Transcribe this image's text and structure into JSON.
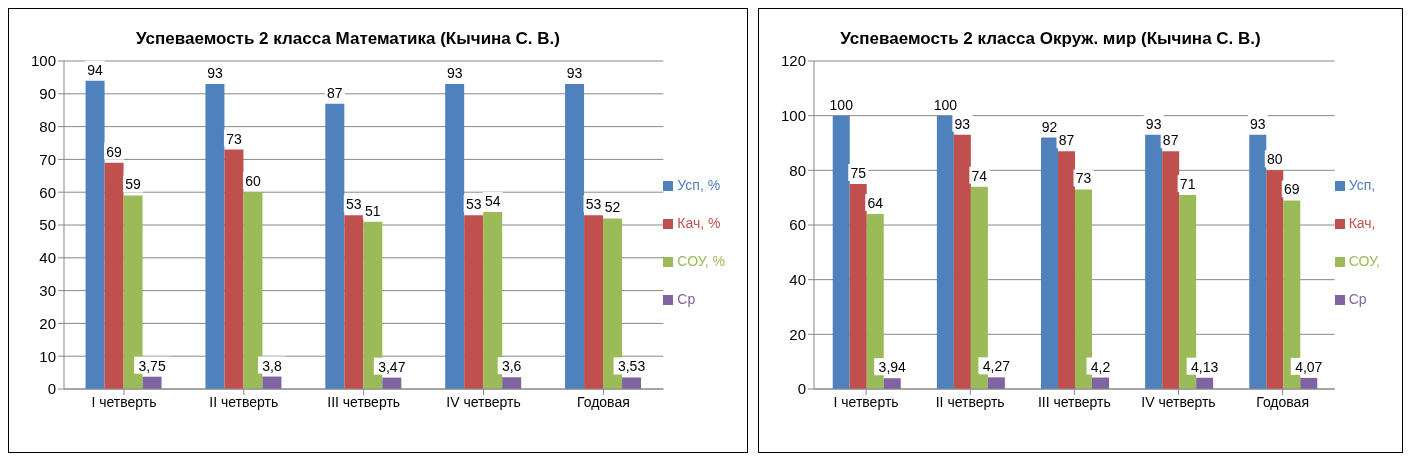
{
  "chart_data": [
    {
      "type": "bar",
      "title": "Успеваемость 2 класса Математика (Кычина С. В.)",
      "categories": [
        "I четверть",
        "II четверть",
        "III четверть",
        "IV четверть",
        "Годовая"
      ],
      "series": [
        {
          "name": "Усп, %",
          "color": "#4f81bd",
          "values": [
            94,
            93,
            87,
            93,
            93
          ],
          "value_labels": [
            "94",
            "93",
            "87",
            "93",
            "93"
          ]
        },
        {
          "name": "Кач, %",
          "color": "#c0504d",
          "values": [
            69,
            73,
            53,
            53,
            53
          ],
          "value_labels": [
            "69",
            "73",
            "53",
            "53",
            "53"
          ]
        },
        {
          "name": "СОУ, %",
          "color": "#9bbb59",
          "values": [
            59,
            60,
            51,
            54,
            52
          ],
          "value_labels": [
            "59",
            "60",
            "51",
            "54",
            "52"
          ]
        },
        {
          "name": "Ср",
          "color": "#8064a2",
          "values": [
            3.75,
            3.8,
            3.47,
            3.6,
            3.53
          ],
          "value_labels": [
            "3,75",
            "3,8",
            "3,47",
            "3,6",
            "3,53"
          ]
        }
      ],
      "ylim": [
        0,
        100
      ],
      "yticks": [
        0,
        10,
        20,
        30,
        40,
        50,
        60,
        70,
        80,
        90,
        100
      ],
      "grid": "y",
      "legend": "right"
    },
    {
      "type": "bar",
      "title": "Успеваемость 2 класса Окруж. мир (Кычина С. В.)",
      "categories": [
        "I четверть",
        "II четверть",
        "III четверть",
        "IV четверть",
        "Годовая"
      ],
      "series": [
        {
          "name": "Усп,",
          "color": "#4f81bd",
          "values": [
            100,
            100,
            92,
            93,
            93
          ],
          "value_labels": [
            "100",
            "100",
            "92",
            "93",
            "93"
          ]
        },
        {
          "name": "Кач,",
          "color": "#c0504d",
          "values": [
            75,
            93,
            87,
            87,
            80
          ],
          "value_labels": [
            "75",
            "93",
            "87",
            "87",
            "80"
          ]
        },
        {
          "name": "СОУ,",
          "color": "#9bbb59",
          "values": [
            64,
            74,
            73,
            71,
            69
          ],
          "value_labels": [
            "64",
            "74",
            "73",
            "71",
            "69"
          ]
        },
        {
          "name": "Ср",
          "color": "#8064a2",
          "values": [
            3.94,
            4.27,
            4.2,
            4.13,
            4.07
          ],
          "value_labels": [
            "3,94",
            "4,27",
            "4,2",
            "4,13",
            "4,07"
          ]
        }
      ],
      "ylim": [
        0,
        120
      ],
      "yticks": [
        0,
        20,
        40,
        60,
        80,
        100,
        120
      ],
      "grid": "y",
      "legend": "right"
    }
  ]
}
